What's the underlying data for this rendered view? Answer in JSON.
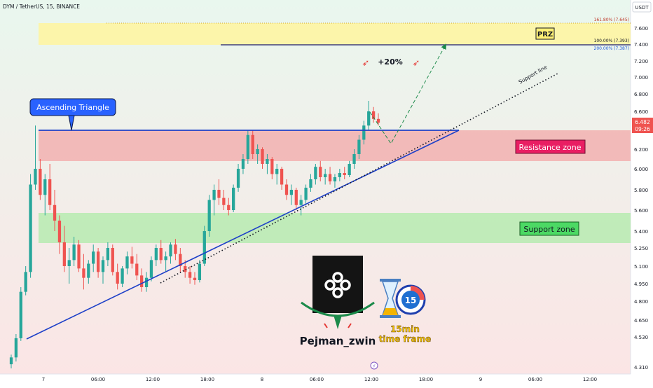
{
  "header": {
    "symbol_line": "DYM / TetherUS, 15, BINANCE",
    "currency": "USDT"
  },
  "price_axis": {
    "ticks": [
      "7.600",
      "7.400",
      "7.200",
      "7.000",
      "6.800",
      "6.600",
      "6.200",
      "6.000",
      "5.800",
      "5.600",
      "5.400",
      "5.250",
      "5.100",
      "4.950",
      "4.800",
      "4.650",
      "4.530",
      "4.310"
    ],
    "last_price": "6.482",
    "countdown": "09:26"
  },
  "time_axis": {
    "ticks": [
      "7",
      "06:00",
      "12:00",
      "18:00",
      "8",
      "06:00",
      "12:00",
      "18:00",
      "9",
      "06:00",
      "12:00"
    ]
  },
  "annotations": {
    "ascending_triangle": "Ascending Triangle",
    "resistance_zone": "Resistance zone",
    "support_zone": "Support zone",
    "prz": "PRZ",
    "support_line": "Support line",
    "target_gain": "+20%",
    "fib_1618": "161.80% (7.645)",
    "fib_100": "100.00% (7.393)",
    "fib_200": "200.00% (7.387)",
    "author": "Pejman_zwin",
    "timeframe_line1": "15min",
    "timeframe_line2": "time frame",
    "timer_number": "15"
  },
  "colors": {
    "bull": "#26a69a",
    "bear": "#ef5350",
    "prz_fill": "#fff59d",
    "resistance_fill": "#f3a8a8",
    "support_fill": "#b6ebb0",
    "trendline": "#1e40c8",
    "label_blue": "#2962ff",
    "label_red": "#e91e63",
    "label_green": "#4cd964"
  },
  "chart_data": {
    "type": "candlestick",
    "symbol": "DYM / TetherUS",
    "interval": "15",
    "exchange": "BINANCE",
    "y_axis_ticks": [
      7.6,
      7.4,
      7.2,
      7.0,
      6.8,
      6.6,
      6.2,
      6.0,
      5.8,
      5.6,
      5.4,
      5.25,
      5.1,
      4.95,
      4.8,
      4.65,
      4.53,
      4.31
    ],
    "x_axis_ticks": [
      "7",
      "06:00",
      "12:00",
      "18:00",
      "8",
      "06:00",
      "12:00",
      "18:00",
      "9",
      "06:00",
      "12:00"
    ],
    "last_price": 6.482,
    "zones": {
      "prz": [
        7.393,
        7.645
      ],
      "resistance": [
        6.09,
        6.43
      ],
      "support": [
        5.31,
        5.57
      ]
    },
    "fib_levels": [
      {
        "label": "161.80%",
        "value": 7.645
      },
      {
        "label": "100.00%",
        "value": 7.393
      },
      {
        "label": "200.00%",
        "value": 7.387
      }
    ],
    "ohlc": [
      [
        4.33,
        4.4,
        4.3,
        4.38
      ],
      [
        4.38,
        4.55,
        4.35,
        4.52
      ],
      [
        4.52,
        4.92,
        4.5,
        4.88
      ],
      [
        4.88,
        5.1,
        4.85,
        5.05
      ],
      [
        5.05,
        5.95,
        5.0,
        5.85
      ],
      [
        5.85,
        6.45,
        5.8,
        6.0
      ],
      [
        6.0,
        6.1,
        5.7,
        5.75
      ],
      [
        5.75,
        5.95,
        5.55,
        5.9
      ],
      [
        5.9,
        6.05,
        5.6,
        5.65
      ],
      [
        5.65,
        5.8,
        5.4,
        5.5
      ],
      [
        5.5,
        5.55,
        5.2,
        5.3
      ],
      [
        5.3,
        5.45,
        5.05,
        5.1
      ],
      [
        5.1,
        5.25,
        4.95,
        5.15
      ],
      [
        5.15,
        5.35,
        5.1,
        5.28
      ],
      [
        5.28,
        5.32,
        5.05,
        5.08
      ],
      [
        5.08,
        5.2,
        4.9,
        5.0
      ],
      [
        5.0,
        5.15,
        4.95,
        5.12
      ],
      [
        5.12,
        5.28,
        5.05,
        5.22
      ],
      [
        5.22,
        5.25,
        5.0,
        5.05
      ],
      [
        5.05,
        5.18,
        4.95,
        5.15
      ],
      [
        5.15,
        5.3,
        5.1,
        5.25
      ],
      [
        5.25,
        5.28,
        5.02,
        5.05
      ],
      [
        5.05,
        5.12,
        4.9,
        4.95
      ],
      [
        4.95,
        5.1,
        4.92,
        5.08
      ],
      [
        5.08,
        5.22,
        5.03,
        5.18
      ],
      [
        5.18,
        5.26,
        5.08,
        5.12
      ],
      [
        5.12,
        5.2,
        4.98,
        5.02
      ],
      [
        5.02,
        5.08,
        4.88,
        4.92
      ],
      [
        4.92,
        5.05,
        4.88,
        5.0
      ],
      [
        5.0,
        5.18,
        4.97,
        5.15
      ],
      [
        5.15,
        5.28,
        5.1,
        5.25
      ],
      [
        5.25,
        5.32,
        5.12,
        5.15
      ],
      [
        5.15,
        5.22,
        5.05,
        5.18
      ],
      [
        5.18,
        5.3,
        5.12,
        5.28
      ],
      [
        5.28,
        5.33,
        5.15,
        5.2
      ],
      [
        5.2,
        5.25,
        5.05,
        5.1
      ],
      [
        5.1,
        5.15,
        5.0,
        5.05
      ],
      [
        5.05,
        5.1,
        4.95,
        5.0
      ],
      [
        5.0,
        5.05,
        4.94,
        4.98
      ],
      [
        4.98,
        5.15,
        4.96,
        5.12
      ],
      [
        5.12,
        5.45,
        5.1,
        5.4
      ],
      [
        5.4,
        5.75,
        5.35,
        5.7
      ],
      [
        5.7,
        5.85,
        5.55,
        5.8
      ],
      [
        5.8,
        5.9,
        5.65,
        5.72
      ],
      [
        5.72,
        5.8,
        5.6,
        5.65
      ],
      [
        5.65,
        5.72,
        5.55,
        5.6
      ],
      [
        5.6,
        5.85,
        5.58,
        5.82
      ],
      [
        5.82,
        6.05,
        5.78,
        6.0
      ],
      [
        6.0,
        6.15,
        5.95,
        6.1
      ],
      [
        6.1,
        6.4,
        6.05,
        6.35
      ],
      [
        6.35,
        6.4,
        6.1,
        6.15
      ],
      [
        6.15,
        6.25,
        6.05,
        6.2
      ],
      [
        6.2,
        6.22,
        6.0,
        6.05
      ],
      [
        6.05,
        6.15,
        5.95,
        6.1
      ],
      [
        6.1,
        6.12,
        5.9,
        5.95
      ],
      [
        5.95,
        6.05,
        5.85,
        6.0
      ],
      [
        6.0,
        6.02,
        5.8,
        5.85
      ],
      [
        5.85,
        5.9,
        5.7,
        5.75
      ],
      [
        5.75,
        5.85,
        5.65,
        5.8
      ],
      [
        5.8,
        5.82,
        5.6,
        5.65
      ],
      [
        5.65,
        5.75,
        5.55,
        5.7
      ],
      [
        5.7,
        5.85,
        5.65,
        5.82
      ],
      [
        5.82,
        5.95,
        5.78,
        5.9
      ],
      [
        5.9,
        6.05,
        5.85,
        6.02
      ],
      [
        6.02,
        6.08,
        5.88,
        5.92
      ],
      [
        5.92,
        6.0,
        5.85,
        5.95
      ],
      [
        5.95,
        6.02,
        5.85,
        5.88
      ],
      [
        5.88,
        5.95,
        5.82,
        5.92
      ],
      [
        5.92,
        6.0,
        5.88,
        5.96
      ],
      [
        5.96,
        6.02,
        5.9,
        5.94
      ],
      [
        5.94,
        6.08,
        5.92,
        6.05
      ],
      [
        6.05,
        6.2,
        6.0,
        6.15
      ],
      [
        6.15,
        6.35,
        6.1,
        6.3
      ],
      [
        6.3,
        6.5,
        6.25,
        6.45
      ],
      [
        6.45,
        6.72,
        6.4,
        6.6
      ],
      [
        6.6,
        6.65,
        6.48,
        6.52
      ],
      [
        6.52,
        6.58,
        6.45,
        6.48
      ]
    ]
  }
}
